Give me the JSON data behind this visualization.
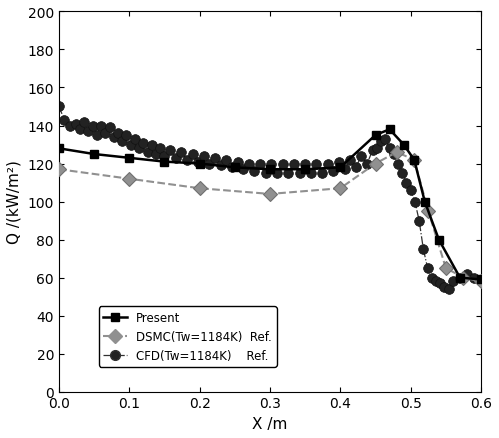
{
  "title": "",
  "xlabel": "X /m",
  "ylabel": "Q /(kW/m²)",
  "xlim": [
    0,
    0.6
  ],
  "ylim": [
    0,
    200
  ],
  "xticks": [
    0,
    0.1,
    0.2,
    0.3,
    0.4,
    0.5,
    0.6
  ],
  "yticks": [
    0,
    20,
    40,
    60,
    80,
    100,
    120,
    140,
    160,
    180,
    200
  ],
  "present_x": [
    0.0,
    0.05,
    0.1,
    0.15,
    0.2,
    0.25,
    0.3,
    0.35,
    0.4,
    0.45,
    0.47,
    0.49,
    0.505,
    0.52,
    0.54,
    0.57,
    0.6
  ],
  "present_y": [
    128,
    125,
    123,
    121,
    120,
    118,
    117,
    117,
    118,
    135,
    138,
    130,
    122,
    100,
    80,
    60,
    59
  ],
  "dsmc_x": [
    0.0,
    0.1,
    0.2,
    0.3,
    0.4,
    0.45,
    0.48,
    0.505,
    0.525,
    0.55,
    0.575,
    0.6
  ],
  "dsmc_y": [
    117,
    112,
    107,
    104,
    107,
    120,
    126,
    122,
    95,
    65,
    60,
    58
  ],
  "cfd_x": [
    0.0,
    0.008,
    0.016,
    0.024,
    0.03,
    0.036,
    0.042,
    0.048,
    0.054,
    0.06,
    0.066,
    0.072,
    0.078,
    0.084,
    0.09,
    0.096,
    0.102,
    0.108,
    0.114,
    0.12,
    0.126,
    0.132,
    0.138,
    0.144,
    0.15,
    0.158,
    0.166,
    0.174,
    0.182,
    0.19,
    0.198,
    0.206,
    0.214,
    0.222,
    0.23,
    0.238,
    0.246,
    0.254,
    0.262,
    0.27,
    0.278,
    0.286,
    0.294,
    0.302,
    0.31,
    0.318,
    0.326,
    0.334,
    0.342,
    0.35,
    0.358,
    0.366,
    0.374,
    0.382,
    0.39,
    0.398,
    0.406,
    0.414,
    0.422,
    0.43,
    0.438,
    0.446,
    0.452,
    0.458,
    0.464,
    0.47,
    0.476,
    0.482,
    0.488,
    0.494,
    0.5,
    0.506,
    0.512,
    0.518,
    0.524,
    0.53,
    0.536,
    0.542,
    0.548,
    0.554,
    0.56,
    0.57,
    0.58,
    0.59,
    0.6
  ],
  "cfd_y": [
    150,
    143,
    140,
    141,
    138,
    142,
    137,
    140,
    135,
    140,
    136,
    139,
    134,
    136,
    132,
    135,
    130,
    133,
    128,
    131,
    126,
    130,
    125,
    128,
    124,
    127,
    123,
    126,
    122,
    125,
    121,
    124,
    120,
    123,
    119,
    122,
    118,
    121,
    117,
    120,
    116,
    120,
    115,
    120,
    115,
    120,
    115,
    120,
    115,
    120,
    115,
    120,
    115,
    120,
    116,
    121,
    117,
    122,
    118,
    124,
    120,
    127,
    128,
    132,
    133,
    128,
    125,
    120,
    115,
    110,
    106,
    100,
    90,
    75,
    65,
    60,
    58,
    57,
    55,
    54,
    58,
    60,
    62,
    60,
    58
  ],
  "present_color": "#000000",
  "dsmc_color": "#909090",
  "cfd_color": "#303030",
  "legend_labels": [
    "Present",
    "DSMC(Tw=1184K)  Ref.",
    "CFD(Tw=1184K)    Ref."
  ]
}
